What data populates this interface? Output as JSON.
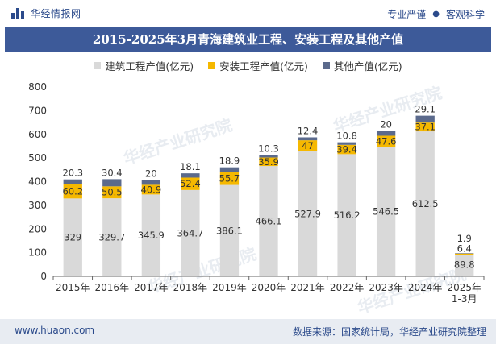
{
  "header": {
    "brand": "华经情报网",
    "tags": [
      "专业严谨",
      "客观科学"
    ]
  },
  "chart_data": {
    "type": "bar",
    "stacked": true,
    "title": "2015-2025年3月青海建筑业工程、安装工程及其他产值",
    "categories": [
      "2015年",
      "2016年",
      "2017年",
      "2018年",
      "2019年",
      "2020年",
      "2021年",
      "2022年",
      "2023年",
      "2024年",
      "2025年\n1-3月"
    ],
    "series": [
      {
        "name": "建筑工程产值(亿元)",
        "color": "#d9d9d9",
        "values": [
          329,
          329.7,
          345.9,
          364.7,
          386.1,
          466.1,
          527.9,
          516.2,
          546.5,
          612.5,
          89.8
        ]
      },
      {
        "name": "安装工程产值(亿元)",
        "color": "#f5b800",
        "values": [
          60.2,
          50.5,
          40.9,
          52.4,
          55.7,
          35.9,
          47,
          39.4,
          47.6,
          37.1,
          6.4
        ]
      },
      {
        "name": "其他产值(亿元)",
        "color": "#5b6a8c",
        "values": [
          20.3,
          30.4,
          20,
          18.1,
          18.9,
          10.3,
          12.4,
          10.8,
          20,
          29.1,
          1.9
        ]
      }
    ],
    "ylim": [
      0,
      800
    ],
    "yticks": [
      0,
      100,
      200,
      300,
      400,
      500,
      600,
      700,
      800
    ],
    "legend": "top-center",
    "grid": false
  },
  "footer": {
    "website": "www.huaon.com",
    "source": "数据来源：国家统计局，华经产业研究院整理"
  },
  "watermark": "华经产业研究院",
  "icons": {
    "brand_logo": "bar-logo-icon",
    "separator": "dot-icon"
  }
}
